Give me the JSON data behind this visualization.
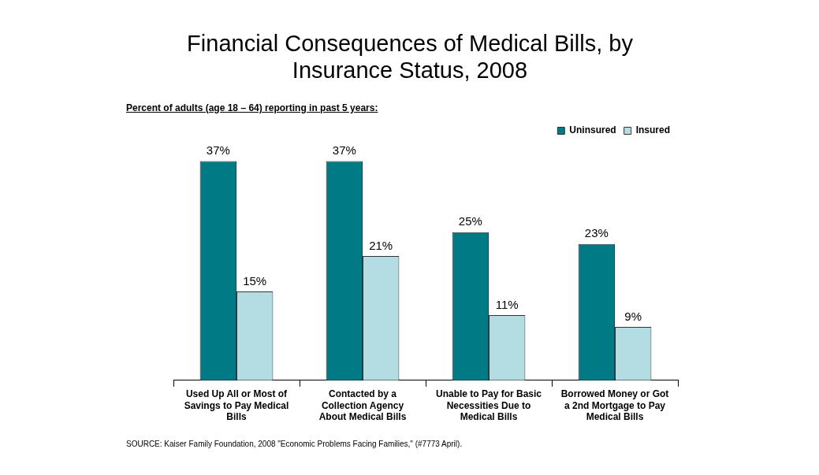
{
  "chart_data": {
    "type": "bar",
    "title": "Financial Consequences of Medical Bills, by Insurance Status, 2008",
    "subtitle": "Percent of adults (age 18 – 64) reporting in past 5 years:",
    "categories": [
      "Used Up All or Most of Savings to Pay Medical Bills",
      "Contacted by a Collection Agency About Medical Bills",
      "Unable to Pay for Basic Necessities Due to Medical Bills",
      "Borrowed Money or Got a 2nd Mortgage to Pay Medical Bills"
    ],
    "series": [
      {
        "name": "Uninsured",
        "color": "#007b85",
        "values": [
          37,
          37,
          25,
          23
        ],
        "value_labels": [
          "37%",
          "37%",
          "25%",
          "23%"
        ]
      },
      {
        "name": "Insured",
        "color": "#b3dde3",
        "values": [
          15,
          21,
          11,
          9
        ],
        "value_labels": [
          "15%",
          "21%",
          "11%",
          "9%"
        ]
      }
    ],
    "legend": "top right",
    "grid": false,
    "tick_labels": "x",
    "annotations": [
      "SOURCE: Kaiser Family Foundation, 2008 \"Economic Problems Facing Families,\" (#7773 April)."
    ]
  }
}
